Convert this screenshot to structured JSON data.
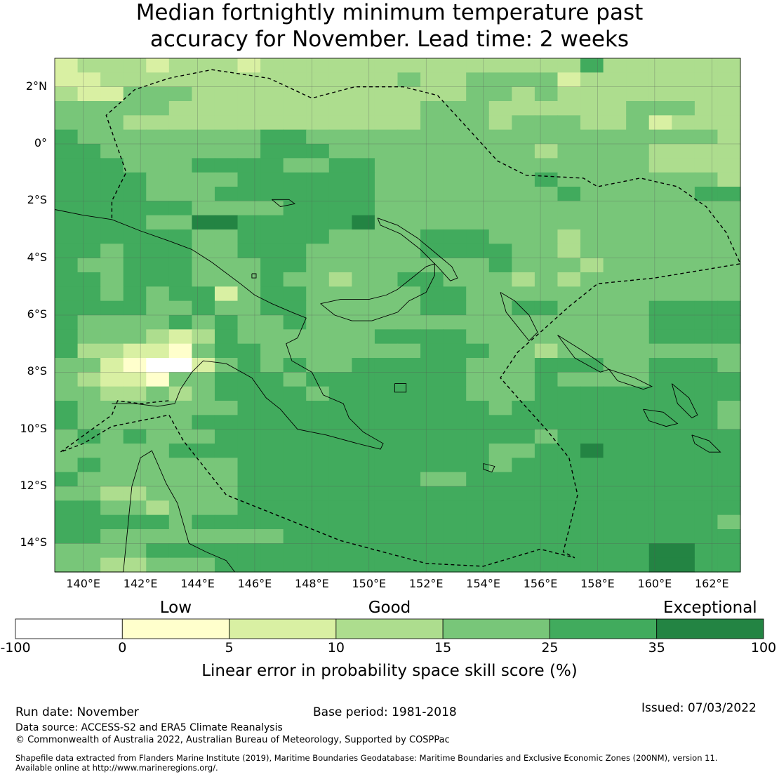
{
  "title": {
    "line1": "Median fortnightly minimum temperature past",
    "line2": "accuracy for November. Lead time: 2 weeks"
  },
  "map": {
    "lat_range": [
      -15,
      3
    ],
    "lon_range": [
      139,
      163
    ],
    "lat_ticks": [
      {
        "value": 2,
        "label": "2°N"
      },
      {
        "value": 0,
        "label": "0°"
      },
      {
        "value": -2,
        "label": "2°S"
      },
      {
        "value": -4,
        "label": "4°S"
      },
      {
        "value": -6,
        "label": "6°S"
      },
      {
        "value": -8,
        "label": "8°S"
      },
      {
        "value": -10,
        "label": "10°S"
      },
      {
        "value": -12,
        "label": "12°S"
      },
      {
        "value": -14,
        "label": "14°S"
      }
    ],
    "lon_ticks": [
      {
        "value": 140,
        "label": "140°E"
      },
      {
        "value": 142,
        "label": "142°E"
      },
      {
        "value": 144,
        "label": "144°E"
      },
      {
        "value": 146,
        "label": "146°E"
      },
      {
        "value": 148,
        "label": "148°E"
      },
      {
        "value": 150,
        "label": "150°E"
      },
      {
        "value": 152,
        "label": "152°E"
      },
      {
        "value": 154,
        "label": "154°E"
      },
      {
        "value": 156,
        "label": "156°E"
      },
      {
        "value": 158,
        "label": "158°E"
      },
      {
        "value": 160,
        "label": "160°E"
      },
      {
        "value": 162,
        "label": "162°E"
      }
    ]
  },
  "legend": {
    "categories": [
      {
        "label": "Low",
        "value": 2.5
      },
      {
        "label": "Good",
        "value": 12.5
      },
      {
        "label": "Exceptional",
        "value": 67.5
      }
    ],
    "bins": [
      {
        "from": -100,
        "to": 0,
        "color": "#ffffff"
      },
      {
        "from": 0,
        "to": 5,
        "color": "#ffffcc"
      },
      {
        "from": 5,
        "to": 10,
        "color": "#d9f0a3"
      },
      {
        "from": 10,
        "to": 15,
        "color": "#addd8e"
      },
      {
        "from": 15,
        "to": 25,
        "color": "#78c679"
      },
      {
        "from": 25,
        "to": 35,
        "color": "#41ab5d"
      },
      {
        "from": 35,
        "to": 100,
        "color": "#238443"
      }
    ],
    "ticks": [
      "-100",
      "0",
      "5",
      "10",
      "15",
      "25",
      "35",
      "100"
    ],
    "label": "Linear error in probability space skill score (%)"
  },
  "footer": {
    "run_date": "Run date: November",
    "base_period": "Base period: 1981-2018",
    "issued": "Issued: 07/03/2022",
    "data_source": "Data source: ACCESS-S2 and ERA5 Climate Reanalysis",
    "copyright": "© Commonwealth of Australia 2022, Australian Bureau of Meteorology, Supported by COSPPac",
    "shapefile_line1": "Shapefile data extracted from Flanders Marine Institute (2019), Maritime Boundaries Geodatabase: Maritime Boundaries and Exclusive Economic Zones (200NM), version 11.",
    "shapefile_line2": "Available online at http://www.marineregions.org/."
  },
  "chart_data": {
    "type": "heatmap",
    "title": "Median fortnightly minimum temperature past accuracy for November. Lead time: 2 weeks",
    "variable": "LEPS skill score (%)",
    "lat_range": [
      -15,
      3
    ],
    "lon_range": [
      139,
      163
    ],
    "cell_size_deg": 0.8,
    "row_order": "north-to-south",
    "category_scale": "0:<0, 1:0-5, 2:5-10, 3:10-15, 4:15-25, 5:25-35, 6:35-100",
    "grid": [
      "233323332333333333333335333333",
      "223333333333333433444423333333",
      "322444333333333333443433333333",
      "444443333333333344433333344433",
      "444333333333333344434443342333",
      "544444444554444444444444444443",
      "554444444555444444444344443333",
      "555444555544554444444444443333",
      "555544445555554444444544444443",
      "555544455555554444444454444455",
      "555555444455554444444444444444",
      "555544665555564444444444444444",
      "555555445555444455544434444444",
      "554555445554444455554434444444",
      "544555444554444444454443444444",
      "554555444544344554443434444444",
      "554545524554444455444444444444",
      "555544544554444455445544445555",
      "544445454454444444444444445555",
      "544432354444445555444444445555",
      "533221455444444455544344444444",
      "442100245454455555444555445554",
      "432214455545555555444544445555",
      "443343455554555555444555555555",
      "544444445555555555545555555554",
      "544444555555555555555555555554",
      "454544455555555555555455555555",
      "444445555555555555544556555555",
      "454444445555555555545555555555",
      "544444445555555544555555555555",
      "443344445555555555555555555555",
      "554434445555555555555555555555",
      "555554555555555555555555555554",
      "554444444455555555555555555555",
      "444455555555555555555555556655",
      "443344455555555555555555556655"
    ]
  }
}
